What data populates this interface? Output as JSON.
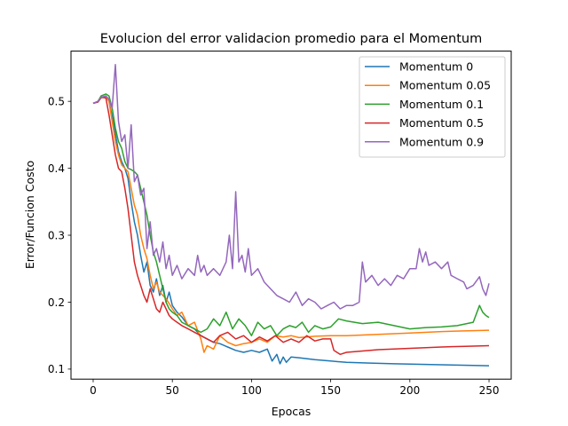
{
  "chart_data": {
    "type": "line",
    "title": "Evolucion del error validacion promedio para el Momentum",
    "xlabel": "Epocas",
    "ylabel": "Error/Funcion Costo",
    "xlim": [
      -14,
      264
    ],
    "ylim": [
      0.085,
      0.575
    ],
    "xticks": [
      0,
      50,
      100,
      150,
      200,
      250
    ],
    "yticks": [
      0.1,
      0.2,
      0.3,
      0.4,
      0.5
    ],
    "xtick_labels": [
      "0",
      "50",
      "100",
      "150",
      "200",
      "250"
    ],
    "ytick_labels": [
      "0.1",
      "0.2",
      "0.3",
      "0.4",
      "0.5"
    ],
    "grid": false,
    "legend_position": "top-right",
    "series": [
      {
        "name": "Momentum 0",
        "color": "#1f77b4",
        "points": [
          [
            0,
            0.497
          ],
          [
            3,
            0.499
          ],
          [
            5,
            0.505
          ],
          [
            8,
            0.508
          ],
          [
            10,
            0.5
          ],
          [
            12,
            0.478
          ],
          [
            14,
            0.452
          ],
          [
            16,
            0.425
          ],
          [
            18,
            0.41
          ],
          [
            20,
            0.4
          ],
          [
            22,
            0.385
          ],
          [
            24,
            0.35
          ],
          [
            26,
            0.32
          ],
          [
            28,
            0.3
          ],
          [
            30,
            0.27
          ],
          [
            32,
            0.245
          ],
          [
            34,
            0.26
          ],
          [
            36,
            0.225
          ],
          [
            38,
            0.215
          ],
          [
            40,
            0.235
          ],
          [
            42,
            0.21
          ],
          [
            44,
            0.225
          ],
          [
            46,
            0.2
          ],
          [
            48,
            0.215
          ],
          [
            50,
            0.195
          ],
          [
            53,
            0.185
          ],
          [
            56,
            0.178
          ],
          [
            60,
            0.165
          ],
          [
            64,
            0.16
          ],
          [
            68,
            0.15
          ],
          [
            72,
            0.145
          ],
          [
            76,
            0.14
          ],
          [
            80,
            0.138
          ],
          [
            85,
            0.133
          ],
          [
            90,
            0.128
          ],
          [
            95,
            0.125
          ],
          [
            100,
            0.128
          ],
          [
            105,
            0.125
          ],
          [
            110,
            0.13
          ],
          [
            113,
            0.112
          ],
          [
            116,
            0.122
          ],
          [
            118,
            0.108
          ],
          [
            120,
            0.118
          ],
          [
            122,
            0.11
          ],
          [
            125,
            0.118
          ],
          [
            130,
            0.117
          ],
          [
            140,
            0.114
          ],
          [
            150,
            0.112
          ],
          [
            160,
            0.11
          ],
          [
            175,
            0.109
          ],
          [
            190,
            0.108
          ],
          [
            210,
            0.107
          ],
          [
            230,
            0.106
          ],
          [
            250,
            0.105
          ]
        ]
      },
      {
        "name": "Momentum 0.05",
        "color": "#ff7f0e",
        "points": [
          [
            0,
            0.497
          ],
          [
            3,
            0.499
          ],
          [
            5,
            0.505
          ],
          [
            8,
            0.508
          ],
          [
            10,
            0.5
          ],
          [
            12,
            0.47
          ],
          [
            14,
            0.44
          ],
          [
            16,
            0.42
          ],
          [
            18,
            0.405
          ],
          [
            20,
            0.4
          ],
          [
            22,
            0.395
          ],
          [
            24,
            0.37
          ],
          [
            26,
            0.345
          ],
          [
            28,
            0.33
          ],
          [
            30,
            0.3
          ],
          [
            32,
            0.28
          ],
          [
            34,
            0.265
          ],
          [
            36,
            0.24
          ],
          [
            38,
            0.22
          ],
          [
            40,
            0.23
          ],
          [
            42,
            0.215
          ],
          [
            44,
            0.21
          ],
          [
            46,
            0.205
          ],
          [
            48,
            0.198
          ],
          [
            50,
            0.19
          ],
          [
            53,
            0.18
          ],
          [
            56,
            0.185
          ],
          [
            60,
            0.165
          ],
          [
            64,
            0.17
          ],
          [
            68,
            0.145
          ],
          [
            70,
            0.125
          ],
          [
            72,
            0.135
          ],
          [
            76,
            0.13
          ],
          [
            80,
            0.15
          ],
          [
            85,
            0.14
          ],
          [
            90,
            0.135
          ],
          [
            95,
            0.138
          ],
          [
            100,
            0.14
          ],
          [
            105,
            0.145
          ],
          [
            110,
            0.14
          ],
          [
            115,
            0.15
          ],
          [
            120,
            0.148
          ],
          [
            125,
            0.15
          ],
          [
            130,
            0.147
          ],
          [
            140,
            0.149
          ],
          [
            150,
            0.15
          ],
          [
            160,
            0.15
          ],
          [
            180,
            0.152
          ],
          [
            200,
            0.154
          ],
          [
            220,
            0.156
          ],
          [
            250,
            0.158
          ]
        ]
      },
      {
        "name": "Momentum 0.1",
        "color": "#2ca02c",
        "points": [
          [
            0,
            0.497
          ],
          [
            3,
            0.5
          ],
          [
            5,
            0.508
          ],
          [
            8,
            0.511
          ],
          [
            10,
            0.508
          ],
          [
            12,
            0.49
          ],
          [
            14,
            0.46
          ],
          [
            16,
            0.44
          ],
          [
            18,
            0.43
          ],
          [
            20,
            0.41
          ],
          [
            22,
            0.4
          ],
          [
            24,
            0.398
          ],
          [
            26,
            0.395
          ],
          [
            28,
            0.39
          ],
          [
            30,
            0.37
          ],
          [
            32,
            0.35
          ],
          [
            34,
            0.33
          ],
          [
            36,
            0.3
          ],
          [
            38,
            0.275
          ],
          [
            40,
            0.26
          ],
          [
            42,
            0.24
          ],
          [
            44,
            0.22
          ],
          [
            46,
            0.2
          ],
          [
            48,
            0.19
          ],
          [
            50,
            0.185
          ],
          [
            53,
            0.18
          ],
          [
            56,
            0.17
          ],
          [
            60,
            0.165
          ],
          [
            64,
            0.16
          ],
          [
            68,
            0.155
          ],
          [
            72,
            0.16
          ],
          [
            76,
            0.175
          ],
          [
            80,
            0.165
          ],
          [
            84,
            0.185
          ],
          [
            88,
            0.16
          ],
          [
            92,
            0.175
          ],
          [
            96,
            0.165
          ],
          [
            100,
            0.15
          ],
          [
            104,
            0.17
          ],
          [
            108,
            0.16
          ],
          [
            112,
            0.165
          ],
          [
            116,
            0.15
          ],
          [
            120,
            0.16
          ],
          [
            124,
            0.165
          ],
          [
            128,
            0.162
          ],
          [
            132,
            0.17
          ],
          [
            136,
            0.155
          ],
          [
            140,
            0.165
          ],
          [
            145,
            0.16
          ],
          [
            150,
            0.163
          ],
          [
            155,
            0.175
          ],
          [
            160,
            0.172
          ],
          [
            170,
            0.168
          ],
          [
            180,
            0.17
          ],
          [
            190,
            0.165
          ],
          [
            200,
            0.16
          ],
          [
            210,
            0.162
          ],
          [
            220,
            0.163
          ],
          [
            230,
            0.165
          ],
          [
            240,
            0.17
          ],
          [
            244,
            0.195
          ],
          [
            246,
            0.185
          ],
          [
            248,
            0.18
          ],
          [
            250,
            0.177
          ]
        ]
      },
      {
        "name": "Momentum 0.5",
        "color": "#d62728",
        "points": [
          [
            0,
            0.497
          ],
          [
            3,
            0.499
          ],
          [
            5,
            0.506
          ],
          [
            8,
            0.505
          ],
          [
            10,
            0.48
          ],
          [
            12,
            0.45
          ],
          [
            14,
            0.42
          ],
          [
            16,
            0.4
          ],
          [
            18,
            0.395
          ],
          [
            20,
            0.37
          ],
          [
            22,
            0.34
          ],
          [
            24,
            0.3
          ],
          [
            26,
            0.26
          ],
          [
            28,
            0.24
          ],
          [
            30,
            0.225
          ],
          [
            32,
            0.21
          ],
          [
            34,
            0.2
          ],
          [
            36,
            0.22
          ],
          [
            38,
            0.205
          ],
          [
            40,
            0.19
          ],
          [
            42,
            0.185
          ],
          [
            44,
            0.2
          ],
          [
            46,
            0.19
          ],
          [
            48,
            0.18
          ],
          [
            50,
            0.175
          ],
          [
            53,
            0.17
          ],
          [
            56,
            0.165
          ],
          [
            60,
            0.16
          ],
          [
            64,
            0.155
          ],
          [
            68,
            0.15
          ],
          [
            72,
            0.145
          ],
          [
            76,
            0.14
          ],
          [
            80,
            0.15
          ],
          [
            85,
            0.155
          ],
          [
            90,
            0.145
          ],
          [
            95,
            0.15
          ],
          [
            100,
            0.14
          ],
          [
            105,
            0.148
          ],
          [
            110,
            0.142
          ],
          [
            115,
            0.15
          ],
          [
            120,
            0.14
          ],
          [
            125,
            0.145
          ],
          [
            130,
            0.14
          ],
          [
            135,
            0.15
          ],
          [
            140,
            0.142
          ],
          [
            145,
            0.145
          ],
          [
            150,
            0.145
          ],
          [
            152,
            0.128
          ],
          [
            156,
            0.122
          ],
          [
            160,
            0.125
          ],
          [
            170,
            0.127
          ],
          [
            180,
            0.129
          ],
          [
            190,
            0.13
          ],
          [
            200,
            0.131
          ],
          [
            220,
            0.133
          ],
          [
            235,
            0.134
          ],
          [
            250,
            0.135
          ]
        ]
      },
      {
        "name": "Momentum 0.9",
        "color": "#9467bd",
        "points": [
          [
            0,
            0.497
          ],
          [
            3,
            0.5
          ],
          [
            5,
            0.506
          ],
          [
            8,
            0.508
          ],
          [
            10,
            0.503
          ],
          [
            12,
            0.49
          ],
          [
            14,
            0.555
          ],
          [
            16,
            0.47
          ],
          [
            18,
            0.44
          ],
          [
            20,
            0.45
          ],
          [
            22,
            0.4
          ],
          [
            24,
            0.465
          ],
          [
            26,
            0.38
          ],
          [
            28,
            0.39
          ],
          [
            30,
            0.36
          ],
          [
            32,
            0.37
          ],
          [
            34,
            0.28
          ],
          [
            36,
            0.32
          ],
          [
            38,
            0.27
          ],
          [
            40,
            0.28
          ],
          [
            42,
            0.26
          ],
          [
            44,
            0.29
          ],
          [
            46,
            0.25
          ],
          [
            48,
            0.27
          ],
          [
            50,
            0.24
          ],
          [
            53,
            0.255
          ],
          [
            56,
            0.235
          ],
          [
            60,
            0.25
          ],
          [
            64,
            0.24
          ],
          [
            66,
            0.27
          ],
          [
            68,
            0.245
          ],
          [
            70,
            0.255
          ],
          [
            72,
            0.24
          ],
          [
            76,
            0.25
          ],
          [
            80,
            0.24
          ],
          [
            84,
            0.26
          ],
          [
            86,
            0.3
          ],
          [
            88,
            0.25
          ],
          [
            90,
            0.365
          ],
          [
            92,
            0.26
          ],
          [
            94,
            0.27
          ],
          [
            96,
            0.245
          ],
          [
            98,
            0.28
          ],
          [
            100,
            0.24
          ],
          [
            104,
            0.25
          ],
          [
            108,
            0.23
          ],
          [
            112,
            0.22
          ],
          [
            116,
            0.21
          ],
          [
            120,
            0.205
          ],
          [
            124,
            0.2
          ],
          [
            128,
            0.215
          ],
          [
            132,
            0.195
          ],
          [
            136,
            0.205
          ],
          [
            140,
            0.2
          ],
          [
            144,
            0.19
          ],
          [
            148,
            0.195
          ],
          [
            152,
            0.2
          ],
          [
            156,
            0.19
          ],
          [
            160,
            0.195
          ],
          [
            164,
            0.195
          ],
          [
            168,
            0.2
          ],
          [
            170,
            0.26
          ],
          [
            172,
            0.23
          ],
          [
            176,
            0.24
          ],
          [
            180,
            0.225
          ],
          [
            184,
            0.235
          ],
          [
            188,
            0.225
          ],
          [
            192,
            0.24
          ],
          [
            196,
            0.235
          ],
          [
            200,
            0.25
          ],
          [
            204,
            0.25
          ],
          [
            206,
            0.28
          ],
          [
            208,
            0.26
          ],
          [
            210,
            0.275
          ],
          [
            212,
            0.255
          ],
          [
            216,
            0.26
          ],
          [
            220,
            0.25
          ],
          [
            224,
            0.26
          ],
          [
            226,
            0.24
          ],
          [
            230,
            0.235
          ],
          [
            234,
            0.23
          ],
          [
            236,
            0.22
          ],
          [
            240,
            0.225
          ],
          [
            244,
            0.238
          ],
          [
            246,
            0.22
          ],
          [
            248,
            0.21
          ],
          [
            250,
            0.228
          ]
        ]
      }
    ]
  }
}
